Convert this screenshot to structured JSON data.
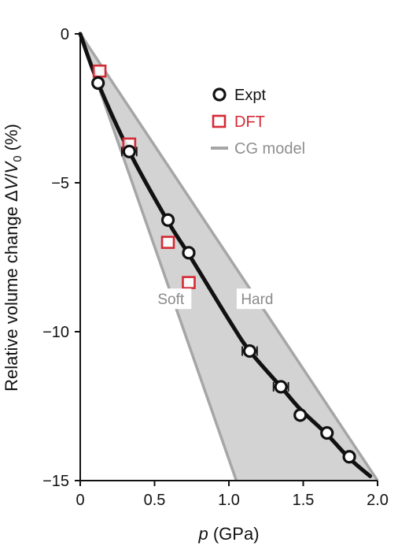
{
  "chart_data": {
    "type": "line",
    "title": "",
    "xlabel": "p (GPa)",
    "xlabel_var": "p",
    "xlabel_unit": "(GPa)",
    "ylabel": "Relative volume change ΔV/V0 (%)",
    "ylabel_prefix": "Relative volume change Δ",
    "ylabel_V": "V",
    "ylabel_slash": "/",
    "ylabel_V0": "V",
    "ylabel_sub": "0",
    "ylabel_unit": " (%)",
    "xlim": [
      0,
      2.0
    ],
    "ylim": [
      -15,
      0
    ],
    "x_ticks": [
      0,
      0.5,
      1.0,
      1.5,
      2.0
    ],
    "x_tick_labels": [
      "0",
      "0.5",
      "1.0",
      "1.5",
      "2.0"
    ],
    "y_ticks": [
      0,
      -5,
      -10,
      -15
    ],
    "y_tick_labels": [
      "0",
      "−5",
      "−10",
      "−15"
    ],
    "grid": false,
    "legend_position": "top-right",
    "series": [
      {
        "name": "Expt",
        "kind": "scatter-open-circle",
        "color": "#111111",
        "x": [
          0.12,
          0.33,
          0.59,
          0.73,
          1.14,
          1.35,
          1.48,
          1.66,
          1.81
        ],
        "y": [
          -1.65,
          -3.95,
          -6.25,
          -7.35,
          -10.65,
          -11.85,
          -12.8,
          -13.4,
          -14.2
        ],
        "x_err": [
          0.02,
          0.05,
          0.02,
          0.02,
          0.05,
          0.05,
          0.02,
          0.02,
          0.02
        ]
      },
      {
        "name": "DFT",
        "kind": "scatter-open-square",
        "color": "#d42a35",
        "x": [
          0.13,
          0.33,
          0.59,
          0.73
        ],
        "y": [
          -1.25,
          -3.7,
          -7.0,
          -8.35
        ]
      },
      {
        "name": "CG model",
        "kind": "band",
        "color": "#a6a6a6",
        "fill": "#d3d3d3",
        "soft_edge": {
          "x": [
            0,
            1.05
          ],
          "y": [
            0,
            -15
          ]
        },
        "hard_edge": {
          "x": [
            0,
            2.0
          ],
          "y": [
            0,
            -15
          ]
        }
      },
      {
        "name": "",
        "kind": "fit-curve",
        "color": "#111111",
        "x": [
          0,
          0.12,
          0.33,
          0.59,
          0.73,
          1.0,
          1.14,
          1.35,
          1.48,
          1.66,
          1.81,
          1.95
        ],
        "y": [
          0,
          -1.65,
          -3.95,
          -6.3,
          -7.4,
          -9.6,
          -10.65,
          -11.85,
          -12.6,
          -13.45,
          -14.25,
          -14.85
        ]
      }
    ],
    "annotations": [
      {
        "text": "Soft",
        "x": 0.61,
        "y": -9.0
      },
      {
        "text": "Hard",
        "x": 1.19,
        "y": -9.0
      }
    ]
  }
}
